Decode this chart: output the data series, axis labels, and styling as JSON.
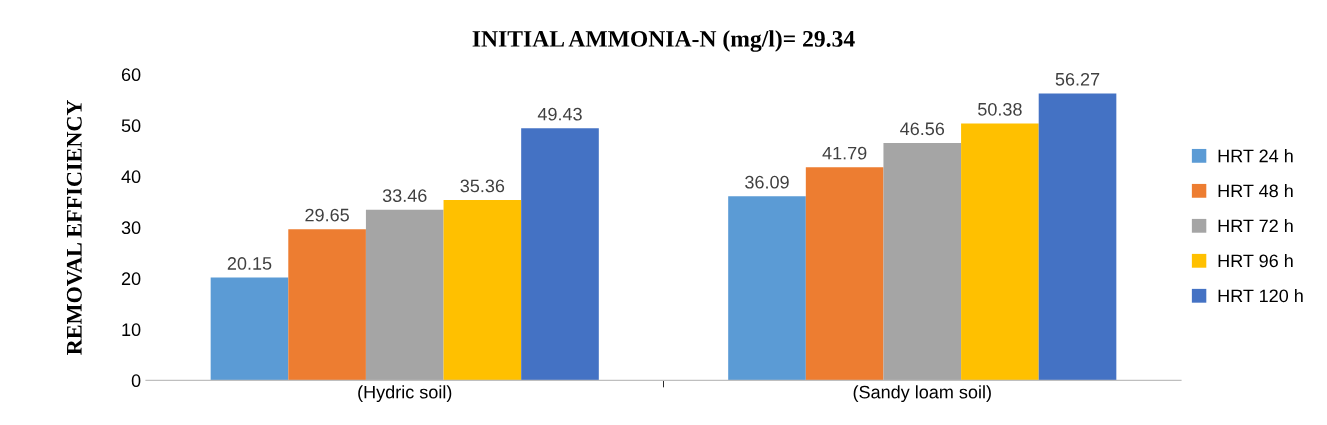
{
  "chart_data": {
    "type": "bar",
    "title": "INITIAL AMMONIA-N (mg/l)= 29.34",
    "ylabel": "REMOVAL EFFICIENCY",
    "categories": [
      "(Hydric soil)",
      "(Sandy loam soil)"
    ],
    "series": [
      {
        "name": "HRT 24 h",
        "color": "#5b9bd5",
        "values": [
          20.15,
          36.09
        ]
      },
      {
        "name": "HRT 48 h",
        "color": "#ed7d31",
        "values": [
          29.65,
          41.79
        ]
      },
      {
        "name": "HRT 72 h",
        "color": "#a5a5a5",
        "values": [
          33.46,
          46.56
        ]
      },
      {
        "name": "HRT 96 h",
        "color": "#ffc000",
        "values": [
          35.36,
          50.38
        ]
      },
      {
        "name": "HRT 120 h",
        "color": "#4472c4",
        "values": [
          49.43,
          56.27
        ]
      }
    ],
    "ylim": [
      0,
      60
    ],
    "yticks": [
      0,
      10,
      20,
      30,
      40,
      50,
      60
    ],
    "grid": false,
    "legend": "right",
    "data_labels": true
  }
}
